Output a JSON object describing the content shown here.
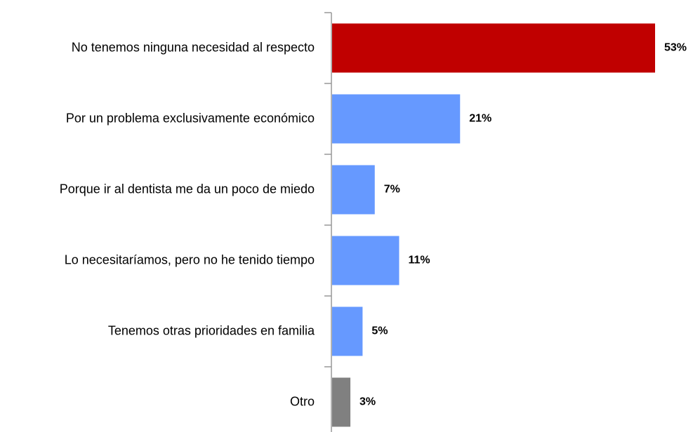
{
  "chart_data": {
    "type": "barh",
    "categories": [
      "No tenemos ninguna necesidad al respecto",
      "Por un problema exclusivamente económico",
      "Porque ir al dentista me da un poco de miedo",
      "Lo necesitaríamos, pero no he tenido tiempo",
      "Tenemos otras prioridades en familia",
      "Otro"
    ],
    "values": [
      53,
      21,
      7,
      11,
      5,
      3
    ],
    "value_labels": [
      "53%",
      "21%",
      "7%",
      "11%",
      "5%",
      "3%"
    ],
    "colors": [
      "#c00000",
      "#6699ff",
      "#6699ff",
      "#6699ff",
      "#6699ff",
      "#808080"
    ]
  }
}
